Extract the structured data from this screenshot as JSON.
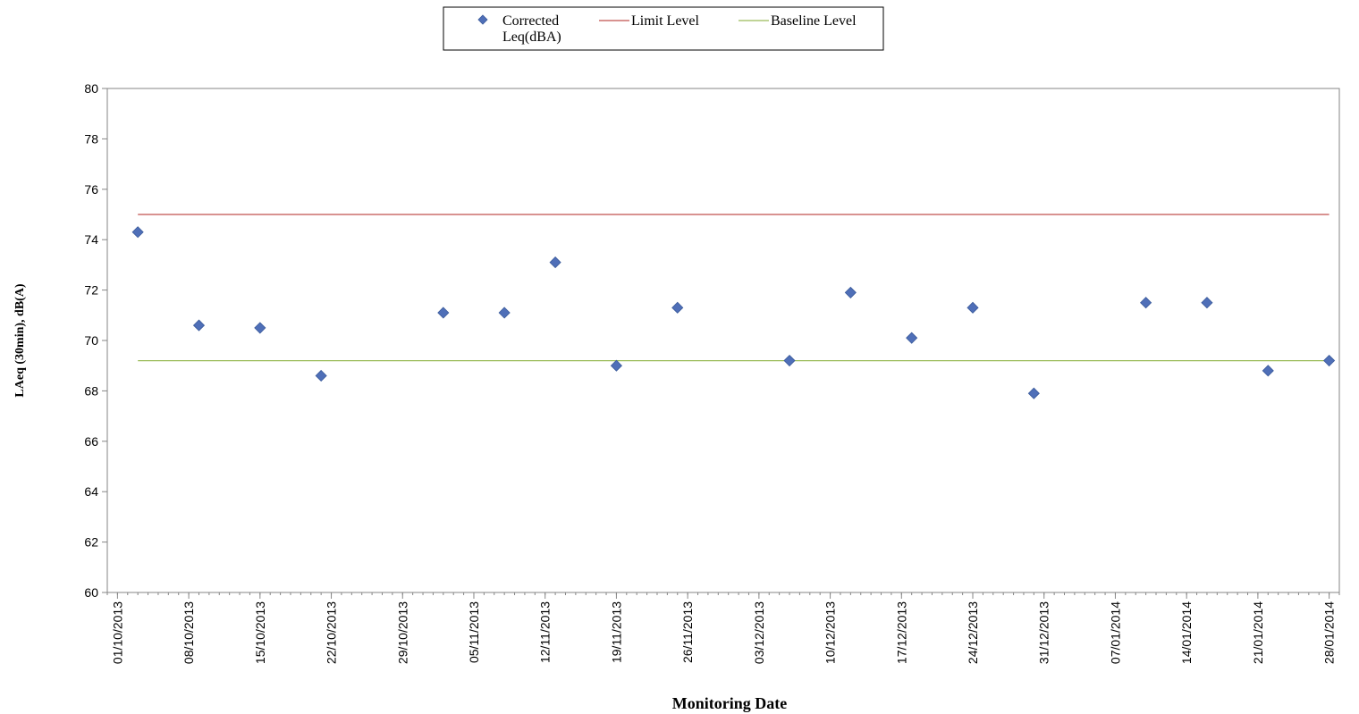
{
  "chart_data": {
    "type": "scatter",
    "title": "",
    "xlabel": "Monitoring Date",
    "ylabel": "LAeq (30min), dB(A)",
    "ylim": [
      60,
      80
    ],
    "yticks": [
      "60",
      "62",
      "64",
      "66",
      "68",
      "70",
      "72",
      "74",
      "76",
      "78",
      "80"
    ],
    "xlim": [
      "01/10/2013",
      "28/01/2014"
    ],
    "xticks": [
      "01/10/2013",
      "08/10/2013",
      "15/10/2013",
      "22/10/2013",
      "29/10/2013",
      "05/11/2013",
      "12/11/2013",
      "19/11/2013",
      "26/11/2013",
      "03/12/2013",
      "10/12/2013",
      "17/12/2013",
      "24/12/2013",
      "31/12/2013",
      "07/01/2014",
      "14/01/2014",
      "21/01/2014",
      "28/01/2014"
    ],
    "legend_position": "top-center",
    "grid": false,
    "series": [
      {
        "name": "Corrected Leq(dBA)",
        "name_lines": [
          "Corrected",
          "Leq(dBA)"
        ],
        "type": "scatter",
        "marker": "diamond",
        "color": "#4F6FB8",
        "points": [
          {
            "x": "03/10/2013",
            "y": 74.3
          },
          {
            "x": "09/10/2013",
            "y": 70.6
          },
          {
            "x": "15/10/2013",
            "y": 70.5
          },
          {
            "x": "21/10/2013",
            "y": 68.6
          },
          {
            "x": "02/11/2013",
            "y": 71.1
          },
          {
            "x": "08/11/2013",
            "y": 71.1
          },
          {
            "x": "13/11/2013",
            "y": 73.1
          },
          {
            "x": "19/11/2013",
            "y": 69.0
          },
          {
            "x": "25/11/2013",
            "y": 71.3
          },
          {
            "x": "06/12/2013",
            "y": 69.2
          },
          {
            "x": "12/12/2013",
            "y": 71.9
          },
          {
            "x": "18/12/2013",
            "y": 70.1
          },
          {
            "x": "24/12/2013",
            "y": 71.3
          },
          {
            "x": "30/12/2013",
            "y": 67.9
          },
          {
            "x": "10/01/2014",
            "y": 71.5
          },
          {
            "x": "16/01/2014",
            "y": 71.5
          },
          {
            "x": "22/01/2014",
            "y": 68.8
          },
          {
            "x": "28/01/2014",
            "y": 69.2
          }
        ]
      },
      {
        "name": "Limit Level",
        "type": "line",
        "color": "#C0504D",
        "points": [
          {
            "x": "03/10/2013",
            "y": 75
          },
          {
            "x": "28/01/2014",
            "y": 75
          }
        ]
      },
      {
        "name": "Baseline Level",
        "type": "line",
        "color": "#9BBB59",
        "points": [
          {
            "x": "03/10/2013",
            "y": 69.2
          },
          {
            "x": "28/01/2014",
            "y": 69.2
          }
        ]
      }
    ]
  }
}
